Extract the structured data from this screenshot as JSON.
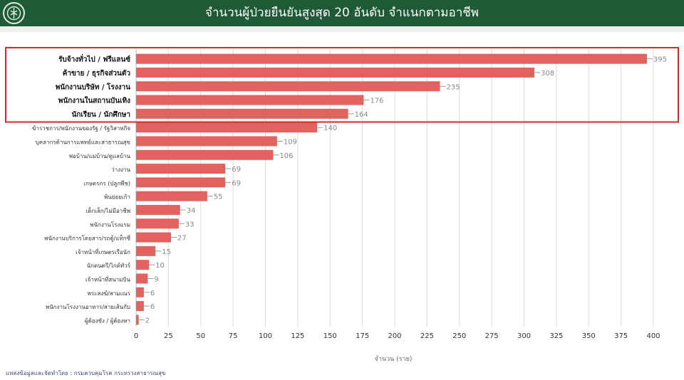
{
  "header": {
    "title": "จำนวนผู้ป่วยยืนยันสูงสุด 20 อันดับ จำแนกตามอาชีพ"
  },
  "colors": {
    "header_bg": "#1f5a36",
    "bar": "#e2625f",
    "highlight_box": "#d42a2a",
    "grid": "#d9d9d9"
  },
  "icons": {
    "logo": "ministry-emblem-icon"
  },
  "chart_data": {
    "type": "bar",
    "orientation": "horizontal",
    "categories": [
      "รับจ้างทั่วไป / ฟรีแลนซ์",
      "ค้าขาย / ธุรกิจส่วนตัว",
      "พนักงานบริษัท / โรงงาน",
      "พนักงานในสถานบันเทิง",
      "นักเรียน / นักศึกษา",
      "ข้าราชการ/พนักงานของรัฐ / รัฐวิสาหกิจ",
      "บุคลากรด้านการแพทย์และสาธารณสุข",
      "พ่อบ้าน/แม่บ้าน/ดูแลบ้าน",
      "ว่างงาน",
      "เกษตรกร (ปลูกพืช)",
      "พ้นย่อยเก้า",
      "เด็กเล็ก/ไม่มีอาชีพ",
      "พนักงานโรงแรม",
      "พนักงานบริการโดยสาร/รถตู้/แท็กซี่",
      "เจ้าหน้าที่เกษตรเรือนัก",
      "นักดนตรี/ไกด์ทัวร์",
      "เจ้าหน้าที่สนามบิน",
      "พระสงฆ์/สามเณร",
      "พนักงานโรงงานอาหาร/สายเส้นกับ",
      "ผู้ต้องขัง / ผู้ต้องหา"
    ],
    "values": [
      395,
      308,
      235,
      176,
      164,
      140,
      109,
      106,
      69,
      69,
      55,
      34,
      33,
      27,
      15,
      10,
      9,
      6,
      6,
      2
    ],
    "highlighted_count": 5,
    "xlim": [
      0,
      400
    ],
    "xticks": [
      0,
      25,
      50,
      75,
      100,
      125,
      150,
      175,
      200,
      225,
      250,
      275,
      300,
      325,
      350,
      375,
      400
    ],
    "xlabel": "จำนวน (ราย)",
    "ylabel": "",
    "grid": "vertical"
  },
  "footer": {
    "source": "แหล่งข้อมูลและจัดทำโดย : กรมควบคุมโรค กระทรวงสาธารณสุข"
  }
}
